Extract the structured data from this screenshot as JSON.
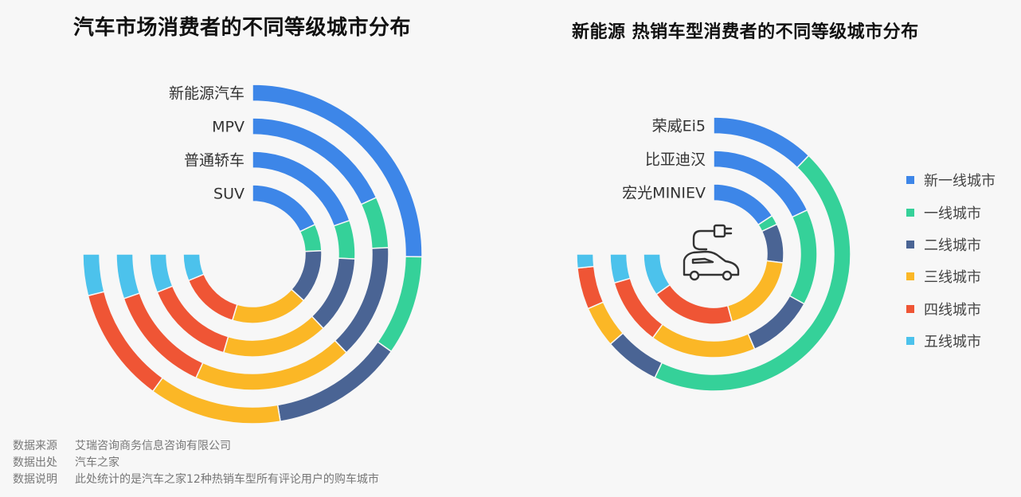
{
  "colors": {
    "tier_new_first": "#3d86e8",
    "tier_first": "#35d199",
    "tier_second": "#4a6494",
    "tier_third": "#fbb726",
    "tier_fourth": "#ef5535",
    "tier_fifth": "#4cc2ec"
  },
  "chart_data": [
    {
      "type": "radial-stacked-bar",
      "title": "汽车市场消费者的不同等级城市分布",
      "angle_range_degrees": 270,
      "series": [
        {
          "name": "新一线城市",
          "color_key": "tier_new_first"
        },
        {
          "name": "一线城市",
          "color_key": "tier_first"
        },
        {
          "name": "二线城市",
          "color_key": "tier_second"
        },
        {
          "name": "三线城市",
          "color_key": "tier_third"
        },
        {
          "name": "四线城市",
          "color_key": "tier_fourth"
        },
        {
          "name": "五线城市",
          "color_key": "tier_fifth"
        }
      ],
      "categories": [
        "新能源汽车",
        "MPV",
        "普通轿车",
        "SUV"
      ],
      "values": [
        [
          32,
          12,
          16,
          16,
          14,
          5
        ],
        [
          24,
          8,
          18,
          25,
          17,
          7
        ],
        [
          26,
          8,
          16,
          22,
          19,
          8
        ],
        [
          23,
          8,
          16,
          23,
          18,
          8
        ]
      ]
    },
    {
      "type": "radial-stacked-bar",
      "title": "新能源 热销车型消费者的不同等级城市分布",
      "angle_range_degrees": 270,
      "series": [
        {
          "name": "新一线城市",
          "color_key": "tier_new_first"
        },
        {
          "name": "一线城市",
          "color_key": "tier_first"
        },
        {
          "name": "二线城市",
          "color_key": "tier_second"
        },
        {
          "name": "三线城市",
          "color_key": "tier_third"
        },
        {
          "name": "四线城市",
          "color_key": "tier_fourth"
        },
        {
          "name": "五线城市",
          "color_key": "tier_fifth"
        }
      ],
      "categories": [
        "荣威Ei5",
        "比亚迪汉",
        "宏光MINIEV"
      ],
      "values": [
        [
          15,
          55,
          8,
          6,
          6,
          2
        ],
        [
          24,
          20,
          14,
          22,
          14,
          6
        ],
        [
          21,
          3,
          12,
          25,
          26,
          13
        ]
      ]
    }
  ],
  "legend": {
    "items": [
      "新一线城市",
      "一线城市",
      "二线城市",
      "三线城市",
      "四线城市",
      "五线城市"
    ],
    "placement": "right"
  },
  "footer": {
    "rows": [
      {
        "key": "数据来源",
        "value": "艾瑞咨询商务信息咨询有限公司"
      },
      {
        "key": "数据出处",
        "value": "汽车之家"
      },
      {
        "key": "数据说明",
        "value": "此处统计的是汽车之家12种热销车型所有评论用户的购车城市"
      }
    ]
  },
  "icon": {
    "name": "electric-car-plug-icon"
  }
}
